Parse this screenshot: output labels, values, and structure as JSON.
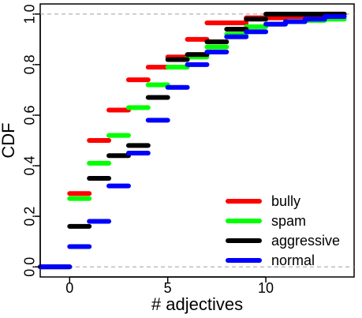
{
  "chart_data": {
    "type": "line",
    "xlabel": "# adjectives",
    "ylabel": "CDF",
    "xlim": [
      -1.5,
      14.5
    ],
    "ylim": [
      -0.04,
      1.04
    ],
    "x_ticks": [
      0,
      5,
      10
    ],
    "x_tick_labels": [
      "0",
      "5",
      "10"
    ],
    "y_ticks": [
      0.0,
      0.2,
      0.4,
      0.6,
      0.8,
      1.0
    ],
    "y_tick_labels": [
      "0.0",
      "0.2",
      "0.4",
      "0.6",
      "0.8",
      "1.0"
    ],
    "reference_lines": [
      0,
      1
    ],
    "grid": false,
    "legend_position": "bottom-right",
    "series": [
      {
        "name": "bully",
        "color": "#ff0000",
        "x": [
          -1.5,
          0,
          1,
          2,
          3,
          4,
          5,
          6,
          7,
          8,
          9,
          10,
          11,
          12,
          13
        ],
        "y": [
          0.0,
          0.29,
          0.5,
          0.62,
          0.74,
          0.79,
          0.83,
          0.9,
          0.965,
          0.965,
          0.985,
          0.985,
          0.99,
          0.99,
          1.0
        ]
      },
      {
        "name": "spam",
        "color": "#00ff00",
        "x": [
          -1.5,
          0,
          1,
          2,
          3,
          4,
          5,
          6,
          7,
          8,
          9,
          10,
          11,
          12,
          13
        ],
        "y": [
          0.0,
          0.27,
          0.41,
          0.52,
          0.63,
          0.72,
          0.79,
          0.83,
          0.87,
          0.92,
          0.95,
          0.96,
          0.97,
          0.975,
          0.98
        ]
      },
      {
        "name": "aggressive",
        "color": "#000000",
        "x": [
          -1.5,
          0,
          1,
          2,
          3,
          4,
          5,
          6,
          7,
          8,
          9,
          10,
          11,
          12,
          13
        ],
        "y": [
          0.0,
          0.16,
          0.35,
          0.44,
          0.48,
          0.67,
          0.82,
          0.84,
          0.89,
          0.94,
          0.98,
          1.0,
          1.0,
          1.0,
          1.0
        ]
      },
      {
        "name": "normal",
        "color": "#0000ff",
        "x": [
          -1.5,
          0,
          1,
          2,
          3,
          4,
          5,
          6,
          7,
          8,
          9,
          10,
          11,
          12,
          13
        ],
        "y": [
          0.0,
          0.08,
          0.18,
          0.32,
          0.45,
          0.58,
          0.71,
          0.8,
          0.85,
          0.91,
          0.93,
          0.96,
          0.97,
          0.98,
          0.99
        ]
      }
    ]
  }
}
